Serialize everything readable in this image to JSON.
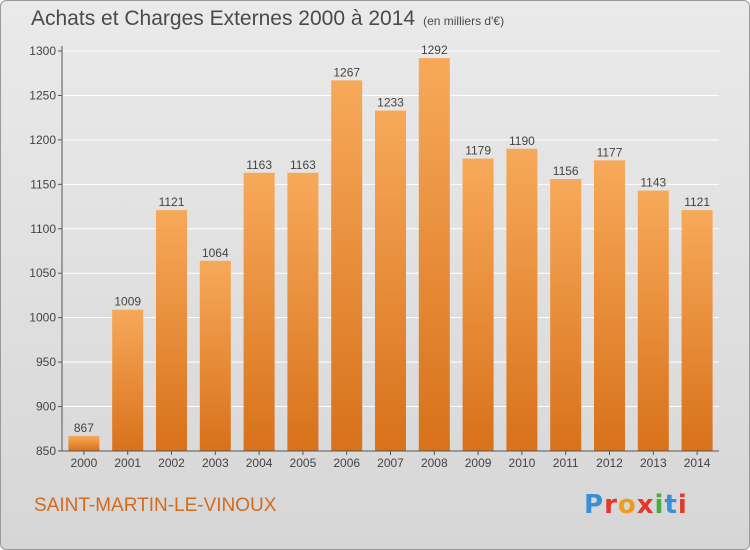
{
  "header": {
    "title": "Achats et Charges Externes 2000 à 2014",
    "subtitle": "(en milliers d'€)"
  },
  "footer": {
    "place": "SAINT-MARTIN-LE-VINOUX",
    "logo": "Proxiti",
    "logo_colors": [
      "#3a8fd6",
      "#e2392c",
      "#f29a1c",
      "#e2392c",
      "#4aaa3c",
      "#3a8fd6",
      "#e2392c"
    ]
  },
  "colors": {
    "bar_light": "#f7a95a",
    "bar_dark": "#d8711a",
    "grid": "#ffffff",
    "axis": "#555555",
    "text": "#444444"
  },
  "chart_data": {
    "type": "bar",
    "title": "Achats et Charges Externes 2000 à 2014",
    "subtitle": "(en milliers d'€)",
    "categories": [
      "2000",
      "2001",
      "2002",
      "2003",
      "2004",
      "2005",
      "2006",
      "2007",
      "2008",
      "2009",
      "2010",
      "2011",
      "2012",
      "2013",
      "2014"
    ],
    "values": [
      867,
      1009,
      1121,
      1064,
      1163,
      1163,
      1267,
      1233,
      1292,
      1179,
      1190,
      1156,
      1177,
      1143,
      1121
    ],
    "ylim": [
      850,
      1300
    ],
    "yticks": [
      850,
      900,
      950,
      1000,
      1050,
      1100,
      1150,
      1200,
      1250,
      1300
    ],
    "grid": true,
    "legend": "none"
  }
}
